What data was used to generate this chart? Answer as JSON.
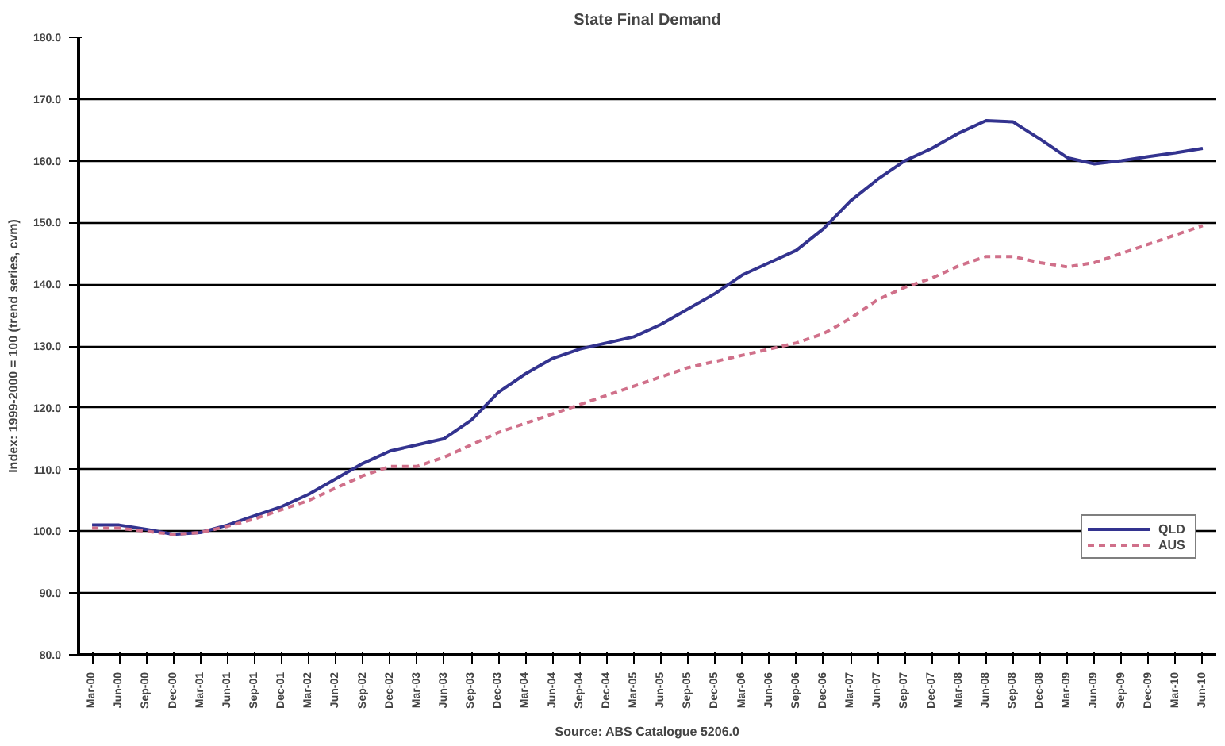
{
  "chart_data": {
    "type": "line",
    "title": "State Final Demand",
    "ylabel": "Index: 1999-2000 = 100 (trend series, cvm)",
    "annotations": [
      "Source: ABS Catalogue 5206.0"
    ],
    "categories": [
      "Mar-00",
      "Jun-00",
      "Sep-00",
      "Dec-00",
      "Mar-01",
      "Jun-01",
      "Sep-01",
      "Dec-01",
      "Mar-02",
      "Jun-02",
      "Sep-02",
      "Dec-02",
      "Mar-03",
      "Jun-03",
      "Sep-03",
      "Dec-03",
      "Mar-04",
      "Jun-04",
      "Sep-04",
      "Dec-04",
      "Mar-05",
      "Jun-05",
      "Sep-05",
      "Dec-05",
      "Mar-06",
      "Jun-06",
      "Sep-06",
      "Dec-06",
      "Mar-07",
      "Jun-07",
      "Sep-07",
      "Dec-07",
      "Mar-08",
      "Jun-08",
      "Sep-08",
      "Dec-08",
      "Mar-09",
      "Jun-09",
      "Sep-09",
      "Dec-09",
      "Mar-10",
      "Jun-10"
    ],
    "series": [
      {
        "name": "QLD",
        "color": "#33338f",
        "line_style": "solid",
        "values": [
          101,
          101,
          100.3,
          99.5,
          99.8,
          101,
          102.5,
          104,
          106,
          108.5,
          111,
          113,
          114,
          115,
          118,
          122.5,
          125.5,
          128,
          129.5,
          130.5,
          131.5,
          133.5,
          136,
          138.5,
          141.5,
          143.5,
          145.5,
          149,
          153.5,
          157,
          160,
          162,
          164.5,
          166.5,
          166.3,
          163.5,
          160.5,
          159.5,
          160,
          160.7,
          161.3,
          162
        ]
      },
      {
        "name": "AUS",
        "color": "#d0708a",
        "line_style": "dashed",
        "values": [
          100.5,
          100.5,
          100,
          99.5,
          99.8,
          100.8,
          102,
          103.5,
          105,
          107,
          109,
          110.5,
          110.5,
          112,
          114,
          116,
          117.5,
          119,
          120.5,
          122,
          123.5,
          125,
          126.5,
          127.5,
          128.5,
          129.5,
          130.5,
          132,
          134.5,
          137.5,
          139.5,
          141,
          143,
          144.5,
          144.5,
          143.5,
          142.8,
          143.5,
          145,
          146.5,
          148,
          149.5
        ]
      }
    ],
    "ylim": [
      80,
      180
    ],
    "yticks": [
      {
        "value": 80,
        "label": "80.0"
      },
      {
        "value": 90,
        "label": "90.0"
      },
      {
        "value": 100,
        "label": "100.0"
      },
      {
        "value": 110,
        "label": "110.0"
      },
      {
        "value": 120,
        "label": "120.0"
      },
      {
        "value": 130,
        "label": "130.0"
      },
      {
        "value": 140,
        "label": "140.0"
      },
      {
        "value": 150,
        "label": "150.0"
      },
      {
        "value": 160,
        "label": "160.0"
      },
      {
        "value": 170,
        "label": "170.0"
      },
      {
        "value": 180,
        "label": "180.0"
      }
    ],
    "grid": "y",
    "legend": "right",
    "marker": "none"
  }
}
